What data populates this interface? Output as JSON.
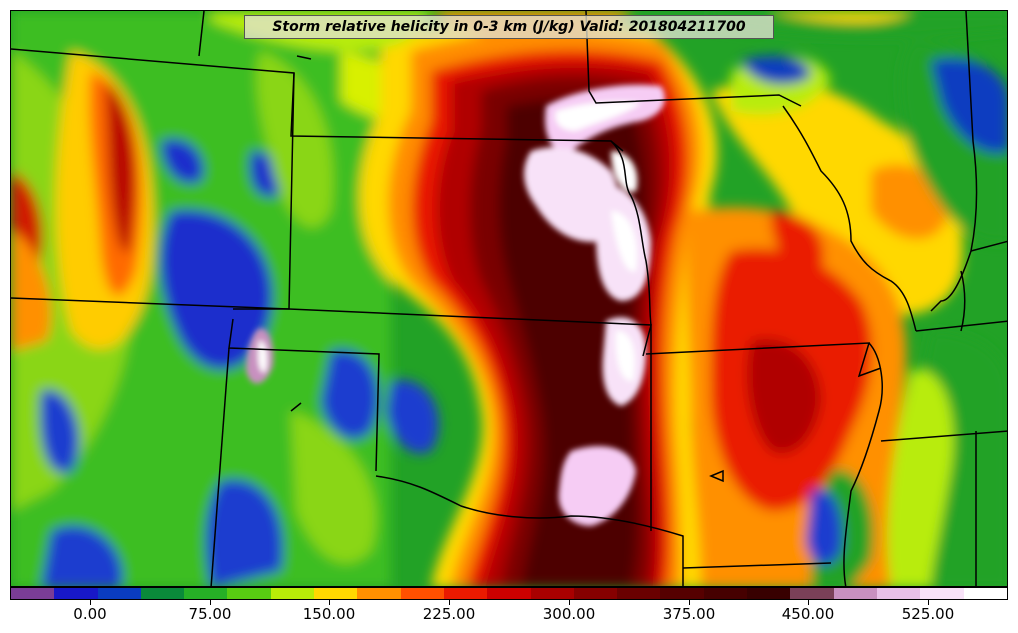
{
  "title": "Storm relative helicity in 0-3 km (J/kg) Valid: 201804211700",
  "colorbar": {
    "colors": [
      "#7a3d96",
      "#1818c8",
      "#0a3cc0",
      "#0a8a3a",
      "#26b026",
      "#58cc12",
      "#b8ec08",
      "#ffd800",
      "#ff9000",
      "#ff5000",
      "#ea1a00",
      "#cc0000",
      "#a80000",
      "#860000",
      "#6a0000",
      "#560000",
      "#460000",
      "#380000",
      "#7a4058",
      "#c890c0",
      "#e8c0e8",
      "#f8e2f8",
      "#ffffff"
    ],
    "ticks": [
      {
        "value": 0,
        "label": "0.00"
      },
      {
        "value": 75,
        "label": "75.00"
      },
      {
        "value": 150,
        "label": "150.00"
      },
      {
        "value": 225,
        "label": "225.00"
      },
      {
        "value": 300,
        "label": "300.00"
      },
      {
        "value": 375,
        "label": "375.00"
      },
      {
        "value": 450,
        "label": "450.00"
      },
      {
        "value": 525,
        "label": "525.00"
      }
    ],
    "range": [
      -50,
      575
    ]
  }
}
